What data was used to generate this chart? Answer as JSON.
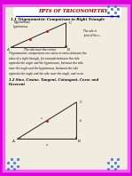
{
  "bg_color": "#ffffff",
  "border_outer_color": "#dd00dd",
  "border_inner_color": "#ee66ee",
  "title": "EPTS OF TRIGONOMETRY",
  "title_underline_color": "#0000aa",
  "section1_title": "1.1 Trigonometric Comparison in Right Triangle",
  "triangle1_label_hyp": "Hypotenuse/\nhypotenuse",
  "triangle1_label_side": "The side in\nfront of the c...",
  "triangle1_label_bottom": "The side near the corner",
  "body_text": "Trigonometric comparisons are ratios or ratios between the sides of a right triangle, for example between the side opposite the angle and the hypotenuse, between the side near the angle and the hypotenuse, between the side opposite the angle and the side near the angle, and so on.",
  "section2_title": "1.2 Sine, Cosine, Tangent, Cotangent, Cosec and\nCosecant",
  "page_color": "#f0ece0"
}
